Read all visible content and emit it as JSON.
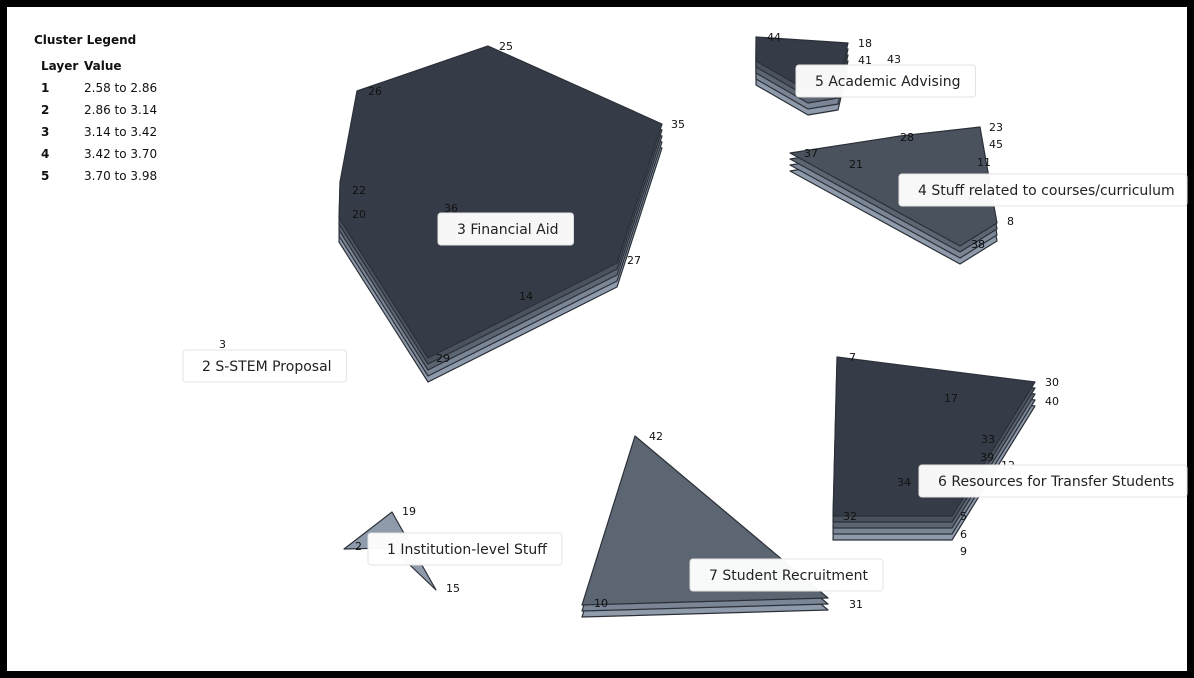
{
  "legend": {
    "title": "Cluster Legend",
    "col_layer": "Layer",
    "col_value": "Value",
    "rows": [
      {
        "layer": "1",
        "value": "2.58 to 2.86"
      },
      {
        "layer": "2",
        "value": "2.86 to 3.14"
      },
      {
        "layer": "3",
        "value": "3.14 to 3.42"
      },
      {
        "layer": "4",
        "value": "3.42 to 3.70"
      },
      {
        "layer": "5",
        "value": "3.70 to 3.98"
      }
    ]
  },
  "colors": {
    "layer1": "#8f9aaa",
    "layer2": "#7a8596",
    "layer3": "#5c6572",
    "layer4": "#4a525e",
    "layer5": "#363c47"
  },
  "clusters": [
    {
      "id": "c1",
      "label": "1 Institution-level Stuff",
      "layers": 1
    },
    {
      "id": "c2",
      "label": "2 S-STEM Proposal",
      "layers": 0
    },
    {
      "id": "c3",
      "label": "3 Financial Aid",
      "layers": 5
    },
    {
      "id": "c4",
      "label": "4 Stuff related to courses/curriculum",
      "layers": 4
    },
    {
      "id": "c5",
      "label": "5 Academic Advising",
      "layers": 5
    },
    {
      "id": "c6",
      "label": "6 Resources for Transfer Students",
      "layers": 5
    },
    {
      "id": "c7",
      "label": "7 Student Recruitment",
      "layers": 3
    }
  ],
  "points": [
    "2",
    "3",
    "5",
    "6",
    "7",
    "8",
    "9",
    "10",
    "11",
    "12",
    "14",
    "15",
    "17",
    "18",
    "19",
    "20",
    "21",
    "22",
    "23",
    "25",
    "26",
    "27",
    "28",
    "29",
    "30",
    "31",
    "32",
    "33",
    "34",
    "35",
    "36",
    "37",
    "38",
    "39",
    "40",
    "41",
    "42",
    "43",
    "44",
    "45"
  ]
}
